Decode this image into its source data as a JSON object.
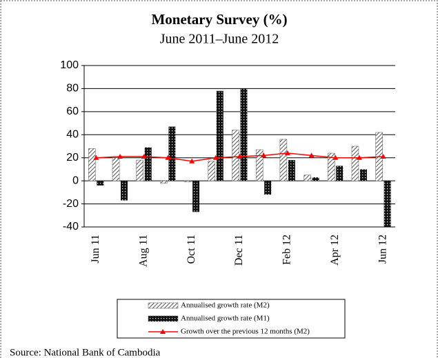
{
  "chart_data": {
    "type": "bar",
    "title": "Monetary Survey (%)",
    "subtitle": "June 2011–June 2012",
    "source": "Source: National Bank of Cambodia",
    "categories": [
      "Jun 11",
      null,
      "Aug 11",
      null,
      "Oct 11",
      null,
      "Dec 11",
      null,
      "Feb 12",
      null,
      "Apr 12",
      null,
      "Jun 12"
    ],
    "series": [
      {
        "name": "Annualised growth rate (M2)",
        "kind": "bar",
        "pattern": "hatch",
        "color": "#555555",
        "values": [
          28,
          20,
          18,
          -2,
          -1,
          17,
          44,
          27,
          36,
          5,
          24,
          30,
          42
        ]
      },
      {
        "name": "Annualised growth rate (M1)",
        "kind": "bar",
        "pattern": "dots",
        "color": "#111111",
        "values": [
          -4,
          -17,
          29,
          47,
          -27,
          78,
          80,
          -12,
          18,
          3,
          13,
          10,
          -40
        ]
      },
      {
        "name": "Growth over the previous 12 months  (M2)",
        "kind": "line",
        "color": "#ff0000",
        "values": [
          20,
          21,
          21,
          20,
          17,
          20,
          21,
          22,
          24,
          22,
          20,
          20,
          21
        ]
      }
    ],
    "ylim": [
      -40,
      100
    ],
    "yticks": [
      -40,
      -20,
      0,
      20,
      40,
      60,
      80,
      100
    ],
    "grid": true
  }
}
